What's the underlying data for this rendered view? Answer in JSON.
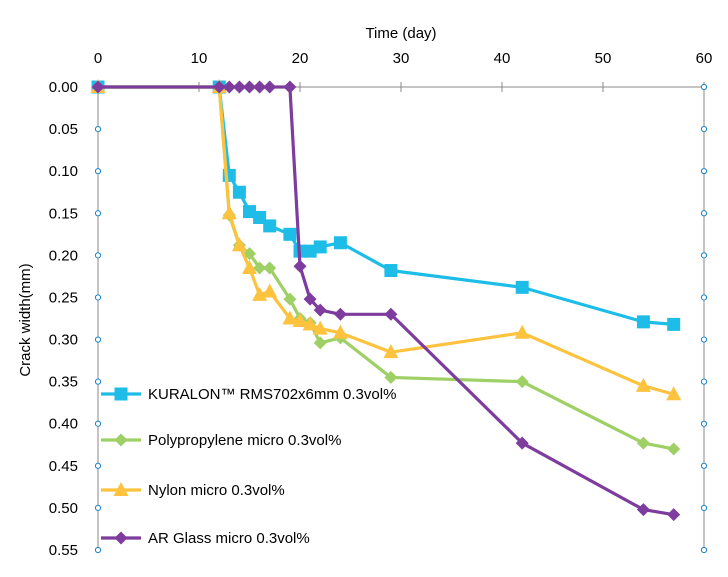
{
  "chart_data": {
    "type": "line",
    "title": "",
    "xlabel": "Time (day)",
    "ylabel": "Crack width(mm)",
    "xlim": [
      0,
      60
    ],
    "ylim": [
      0,
      0.55
    ],
    "y_inverted": true,
    "x_axis_position": "top",
    "x_ticks": [
      0,
      10,
      20,
      30,
      40,
      50,
      60
    ],
    "x_tick_labels": [
      "0",
      "10",
      "20",
      "30",
      "40",
      "50",
      "60"
    ],
    "y_ticks": [
      0,
      0.05,
      0.1,
      0.15,
      0.2,
      0.25,
      0.3,
      0.35,
      0.4,
      0.45,
      0.5,
      0.55
    ],
    "y_tick_labels": [
      "0.00",
      "0.05",
      "0.10",
      "0.15",
      "0.20",
      "0.25",
      "0.30",
      "0.35",
      "0.40",
      "0.45",
      "0.50",
      "0.55"
    ],
    "grid": false,
    "legend_position": "bottom-left",
    "series": [
      {
        "name": "KURALON™ RMS702x6mm 0.3vol%",
        "color": "#1ebde8",
        "marker": "square",
        "x": [
          0,
          12,
          13,
          14,
          15,
          16,
          17,
          19,
          20,
          21,
          22,
          24,
          29,
          42,
          54,
          57
        ],
        "y": [
          0,
          0,
          0.105,
          0.125,
          0.148,
          0.155,
          0.165,
          0.175,
          0.195,
          0.195,
          0.19,
          0.185,
          0.218,
          0.238,
          0.279,
          0.282
        ]
      },
      {
        "name": "Polypropylene micro 0.3vol%",
        "color": "#9ed065",
        "marker": "diamond",
        "x": [
          0,
          12,
          13,
          14,
          15,
          16,
          17,
          19,
          20,
          21,
          22,
          24,
          29,
          42,
          54,
          57
        ],
        "y": [
          0,
          0,
          0.152,
          0.188,
          0.198,
          0.215,
          0.215,
          0.252,
          0.275,
          0.28,
          0.304,
          0.298,
          0.345,
          0.35,
          0.423,
          0.43
        ]
      },
      {
        "name": "Nylon micro 0.3vol%",
        "color": "#fdc23e",
        "marker": "triangle",
        "x": [
          0,
          12,
          13,
          14,
          15,
          16,
          17,
          19,
          20,
          21,
          22,
          24,
          29,
          42,
          54,
          57
        ],
        "y": [
          0,
          0,
          0.15,
          0.188,
          0.215,
          0.247,
          0.243,
          0.275,
          0.278,
          0.282,
          0.287,
          0.292,
          0.315,
          0.292,
          0.355,
          0.365
        ]
      },
      {
        "name": "AR Glass micro 0.3vol%",
        "color": "#7d3c9e",
        "marker": "diamond",
        "x": [
          0,
          12,
          13,
          14,
          15,
          16,
          17,
          19,
          20,
          21,
          22,
          24,
          29,
          42,
          54,
          57
        ],
        "y": [
          0,
          0,
          0,
          0,
          0,
          0,
          0,
          0,
          0.213,
          0.252,
          0.265,
          0.27,
          0.27,
          0.423,
          0.502,
          0.508
        ]
      }
    ]
  }
}
